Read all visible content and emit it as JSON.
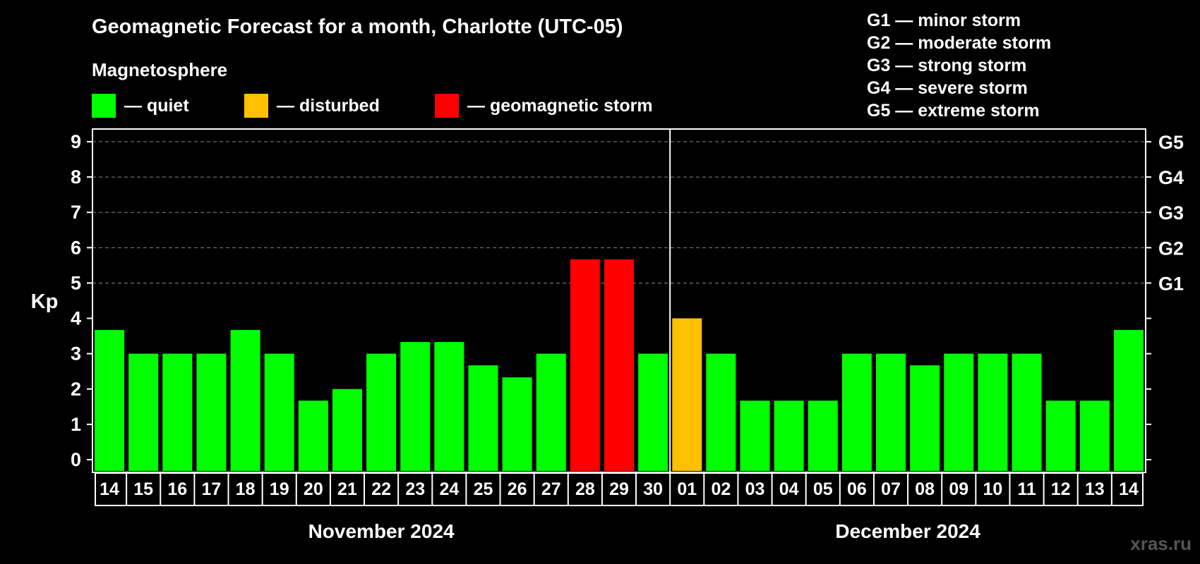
{
  "title": "Geomagnetic Forecast for a month, Charlotte (UTC-05)",
  "subtitle": "Magnetosphere",
  "legend": [
    {
      "label": "— quiet",
      "color": "#00ff00"
    },
    {
      "label": "— disturbed",
      "color": "#ffc000"
    },
    {
      "label": "— geomagnetic storm",
      "color": "#ff0000"
    }
  ],
  "storm_scale": [
    "G1 — minor storm",
    "G2 — moderate storm",
    "G3 — strong storm",
    "G4 — severe storm",
    "G5 — extreme storm"
  ],
  "watermark": "xras.ru",
  "chart_data": {
    "type": "bar",
    "ylabel": "Kp",
    "ylim": [
      0,
      9
    ],
    "yticks": [
      0,
      1,
      2,
      3,
      4,
      5,
      6,
      7,
      8,
      9
    ],
    "right_ticks": [
      {
        "value": 5,
        "label": "G1"
      },
      {
        "value": 6,
        "label": "G2"
      },
      {
        "value": 7,
        "label": "G3"
      },
      {
        "value": 8,
        "label": "G4"
      },
      {
        "value": 9,
        "label": "G5"
      }
    ],
    "grid": "dashed horizontal at 5-9",
    "months": [
      {
        "label": "November 2024",
        "start": 0,
        "end": 16
      },
      {
        "label": "December 2024",
        "start": 17,
        "end": 30
      }
    ],
    "categories": [
      "14",
      "15",
      "16",
      "17",
      "18",
      "19",
      "20",
      "21",
      "22",
      "23",
      "24",
      "25",
      "26",
      "27",
      "28",
      "29",
      "30",
      "01",
      "02",
      "03",
      "04",
      "05",
      "06",
      "07",
      "08",
      "09",
      "10",
      "11",
      "12",
      "13",
      "14"
    ],
    "values": [
      3.67,
      3.0,
      3.0,
      3.0,
      3.67,
      3.0,
      1.67,
      2.0,
      3.0,
      3.33,
      3.33,
      2.67,
      2.33,
      3.0,
      5.67,
      5.67,
      3.0,
      4.0,
      3.0,
      1.67,
      1.67,
      1.67,
      3.0,
      3.0,
      2.67,
      3.0,
      3.0,
      3.0,
      1.67,
      1.67,
      3.67
    ],
    "status": [
      "quiet",
      "quiet",
      "quiet",
      "quiet",
      "quiet",
      "quiet",
      "quiet",
      "quiet",
      "quiet",
      "quiet",
      "quiet",
      "quiet",
      "quiet",
      "quiet",
      "storm",
      "storm",
      "quiet",
      "disturbed",
      "quiet",
      "quiet",
      "quiet",
      "quiet",
      "quiet",
      "quiet",
      "quiet",
      "quiet",
      "quiet",
      "quiet",
      "quiet",
      "quiet",
      "quiet"
    ],
    "colors": {
      "quiet": "#00ff00",
      "disturbed": "#ffc000",
      "storm": "#ff0000"
    }
  }
}
